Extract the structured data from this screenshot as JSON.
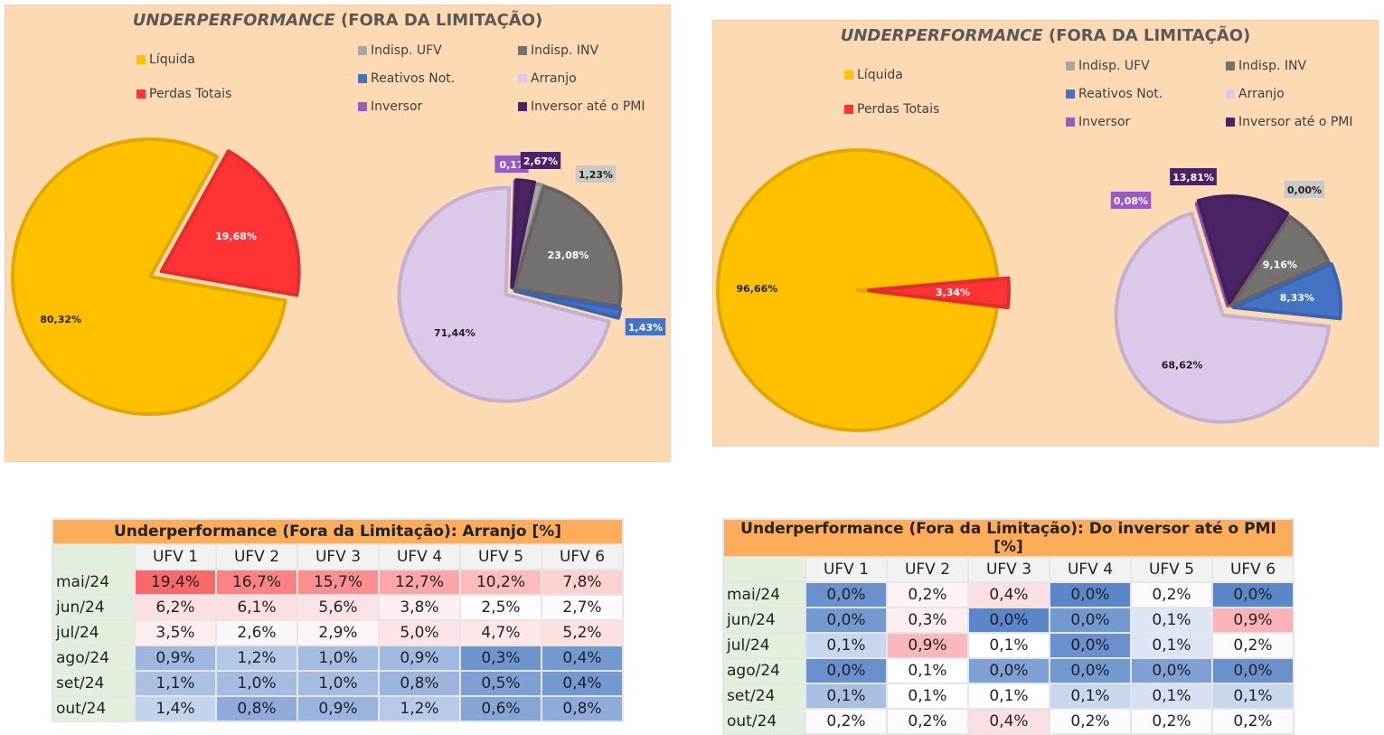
{
  "charts": [
    {
      "title_italic": "UNDERPERFORMANCE",
      "title_rest": " (FORA DA LIMITAÇÃO)",
      "main_pie": {
        "slices": [
          {
            "label": "Líquida",
            "value": 80.32,
            "text": "80,32%",
            "color": "#ffc000"
          },
          {
            "label": "Perdas Totais",
            "value": 19.68,
            "text": "19,68%",
            "color": "#ff3333"
          }
        ]
      },
      "loss_pie": {
        "slices": [
          {
            "label": "Indisp. UFV",
            "value": 1.23,
            "text": "1,23%",
            "color": "#a6a6a6"
          },
          {
            "label": "Indisp. INV",
            "value": 23.08,
            "text": "23,08%",
            "color": "#767171"
          },
          {
            "label": "Reativos Not.",
            "value": 1.43,
            "text": "1,43%",
            "color": "#4472c4"
          },
          {
            "label": "Arranjo",
            "value": 71.44,
            "text": "71,44%",
            "color": "#dcc8e8"
          },
          {
            "label": "Inversor",
            "value": 0.17,
            "text": "0,17",
            "color": "#9b59c6"
          },
          {
            "label": "Inversor até o PMI",
            "value": 2.67,
            "text": "2,67%",
            "color": "#4b2466"
          }
        ]
      }
    },
    {
      "title_italic": "UNDERPERFORMANCE",
      "title_rest": " (FORA DA LIMITAÇÃO)",
      "main_pie": {
        "slices": [
          {
            "label": "Líquida",
            "value": 96.66,
            "text": "96,66%",
            "color": "#ffc000"
          },
          {
            "label": "Perdas Totais",
            "value": 3.34,
            "text": "3,34%",
            "color": "#ff3333"
          }
        ]
      },
      "loss_pie": {
        "slices": [
          {
            "label": "Indisp. UFV",
            "value": 0.0,
            "text": "0,00%",
            "color": "#a6a6a6"
          },
          {
            "label": "Indisp. INV",
            "value": 9.16,
            "text": "9,16%",
            "color": "#767171"
          },
          {
            "label": "Reativos Not.",
            "value": 8.33,
            "text": "8,33%",
            "color": "#4472c4"
          },
          {
            "label": "Arranjo",
            "value": 68.62,
            "text": "68,62%",
            "color": "#dcc8e8"
          },
          {
            "label": "Inversor",
            "value": 0.08,
            "text": "0,08%",
            "color": "#9b59c6"
          },
          {
            "label": "Inversor até o PMI",
            "value": 13.81,
            "text": "13,81%",
            "color": "#4b2466"
          }
        ]
      }
    }
  ],
  "chart_data": [
    {
      "type": "pie",
      "series": [
        {
          "categories": [
            "Líquida",
            "Perdas Totais"
          ],
          "values": [
            80.32,
            19.68
          ]
        },
        {
          "categories": [
            "Indisp. UFV",
            "Indisp. INV",
            "Reativos Not.",
            "Arranjo",
            "Inversor",
            "Inversor até o PMI"
          ],
          "values": [
            1.23,
            23.08,
            1.43,
            71.44,
            0.17,
            2.67
          ]
        }
      ],
      "title": "UNDERPERFORMANCE (FORA DA LIMITAÇÃO)",
      "legend": "top"
    },
    {
      "type": "pie",
      "series": [
        {
          "categories": [
            "Líquida",
            "Perdas Totais"
          ],
          "values": [
            96.66,
            3.34
          ]
        },
        {
          "categories": [
            "Indisp. UFV",
            "Indisp. INV",
            "Reativos Not.",
            "Arranjo",
            "Inversor",
            "Inversor até o PMI"
          ],
          "values": [
            0.0,
            9.16,
            8.33,
            68.62,
            0.08,
            13.81
          ]
        }
      ],
      "title": "UNDERPERFORMANCE (FORA DA LIMITAÇÃO)",
      "legend": "top"
    }
  ],
  "tables": [
    {
      "title": "Underperformance (Fora da Limitação): Arranjo [%]",
      "columns": [
        "UFV 1",
        "UFV 2",
        "UFV 3",
        "UFV 4",
        "UFV 5",
        "UFV 6"
      ],
      "rows": [
        {
          "label": "mai/24",
          "values": [
            "19,4%",
            "16,7%",
            "15,7%",
            "12,7%",
            "10,2%",
            "7,8%"
          ],
          "colors": [
            "#f8696b",
            "#f98385",
            "#fa8f91",
            "#fba7a9",
            "#fcbcbe",
            "#fdd0d2"
          ]
        },
        {
          "label": "jun/24",
          "values": [
            "6,2%",
            "6,1%",
            "5,6%",
            "3,8%",
            "2,5%",
            "2,7%"
          ],
          "colors": [
            "#fde0e2",
            "#fde0e2",
            "#fde3e5",
            "#fdf0f1",
            "#fcfcff",
            "#fcfafd"
          ]
        },
        {
          "label": "jul/24",
          "values": [
            "3,5%",
            "2,6%",
            "2,9%",
            "5,0%",
            "4,7%",
            "5,2%"
          ],
          "colors": [
            "#fdefef",
            "#fcf8fa",
            "#fdf5f6",
            "#fde4e6",
            "#fde7e9",
            "#fde1e3"
          ]
        },
        {
          "label": "ago/24",
          "values": [
            "0,9%",
            "1,2%",
            "1,0%",
            "0,9%",
            "0,3%",
            "0,4%"
          ],
          "colors": [
            "#9db7e0",
            "#b3c7e7",
            "#a4bce2",
            "#a0b9e1",
            "#6f95cf",
            "#7399d1"
          ]
        },
        {
          "label": "set/24",
          "values": [
            "1,1%",
            "1,0%",
            "1,0%",
            "0,8%",
            "0,5%",
            "0,4%"
          ],
          "colors": [
            "#aac1e4",
            "#a4bce2",
            "#a4bce2",
            "#9bb5df",
            "#7d9fd4",
            "#7399d1"
          ]
        },
        {
          "label": "out/24",
          "values": [
            "1,4%",
            "0,8%",
            "0,9%",
            "1,2%",
            "0,6%",
            "0,8%"
          ],
          "colors": [
            "#c3d3ec",
            "#8eabdb",
            "#9ab4df",
            "#b7cae9",
            "#86a5d7",
            "#8eabdb"
          ]
        }
      ]
    },
    {
      "title": "Underperformance (Fora da Limitação): Do inversor até o PMI [%]",
      "columns": [
        "UFV 1",
        "UFV 2",
        "UFV 3",
        "UFV 4",
        "UFV 5",
        "UFV 6"
      ],
      "rows": [
        {
          "label": "mai/24",
          "values": [
            "0,0%",
            "0,2%",
            "0,4%",
            "0,0%",
            "0,2%",
            "0,0%"
          ],
          "colors": [
            "#6a91ce",
            "#fdf3f5",
            "#fbe0e3",
            "#5b86c9",
            "#fcfafd",
            "#5b86c9"
          ]
        },
        {
          "label": "jun/24",
          "values": [
            "0,0%",
            "0,3%",
            "0,0%",
            "0,0%",
            "0,1%",
            "0,9%"
          ],
          "colors": [
            "#7399d1",
            "#fdeef0",
            "#5b86c9",
            "#7399d1",
            "#dde6f5",
            "#f9b3b6"
          ]
        },
        {
          "label": "jul/24",
          "values": [
            "0,1%",
            "0,9%",
            "0,1%",
            "0,0%",
            "0,1%",
            "0,2%"
          ],
          "colors": [
            "#c9d7ee",
            "#f9b8bb",
            "#ffffff",
            "#6a91ce",
            "#dde6f5",
            "#fcfafd"
          ]
        },
        {
          "label": "ago/24",
          "values": [
            "0,0%",
            "0,1%",
            "0,0%",
            "0,0%",
            "0,0%",
            "0,0%"
          ],
          "colors": [
            "#6a91ce",
            "#ffffff",
            "#7ea0d4",
            "#7399d1",
            "#7ea0d4",
            "#6a91ce"
          ]
        },
        {
          "label": "set/24",
          "values": [
            "0,1%",
            "0,1%",
            "0,1%",
            "0,1%",
            "0,1%",
            "0,1%"
          ],
          "colors": [
            "#a9c0e4",
            "#ffffff",
            "#ffffff",
            "#c9d7ee",
            "#d7e1f3",
            "#c9d7ee"
          ]
        },
        {
          "label": "out/24",
          "values": [
            "0,2%",
            "0,2%",
            "0,4%",
            "0,2%",
            "0,2%",
            "0,2%"
          ],
          "colors": [
            "#fcfafd",
            "#fcfafd",
            "#fbe0e3",
            "#fcfafd",
            "#fcfafd",
            "#fcfafd"
          ]
        }
      ]
    }
  ]
}
